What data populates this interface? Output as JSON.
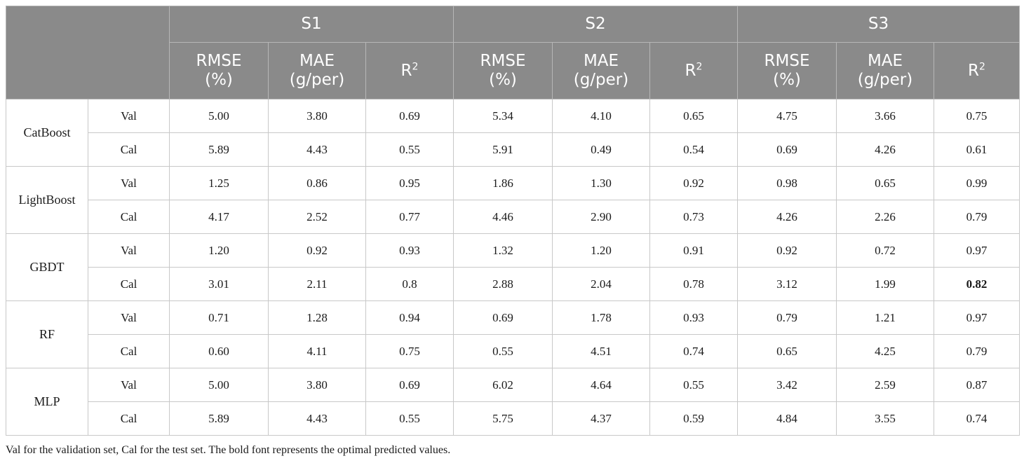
{
  "header": {
    "groups": [
      "S1",
      "S2",
      "S3"
    ],
    "metrics": [
      {
        "line1": "RMSE",
        "line2": "(%)"
      },
      {
        "line1": "MAE",
        "line2": "(g/per)"
      },
      {
        "line1": "R",
        "sup": "2"
      }
    ]
  },
  "rows": [
    {
      "model": "CatBoost",
      "sets": [
        {
          "label": "Val",
          "values": [
            "5.00",
            "3.80",
            "0.69",
            "5.34",
            "4.10",
            "0.65",
            "4.75",
            "3.66",
            "0.75"
          ]
        },
        {
          "label": "Cal",
          "values": [
            "5.89",
            "4.43",
            "0.55",
            "5.91",
            "0.49",
            "0.54",
            "0.69",
            "4.26",
            "0.61"
          ]
        }
      ]
    },
    {
      "model": "LightBoost",
      "sets": [
        {
          "label": "Val",
          "values": [
            "1.25",
            "0.86",
            "0.95",
            "1.86",
            "1.30",
            "0.92",
            "0.98",
            "0.65",
            "0.99"
          ]
        },
        {
          "label": "Cal",
          "values": [
            "4.17",
            "2.52",
            "0.77",
            "4.46",
            "2.90",
            "0.73",
            "4.26",
            "2.26",
            "0.79"
          ]
        }
      ]
    },
    {
      "model": "GBDT",
      "sets": [
        {
          "label": "Val",
          "values": [
            "1.20",
            "0.92",
            "0.93",
            "1.32",
            "1.20",
            "0.91",
            "0.92",
            "0.72",
            "0.97"
          ]
        },
        {
          "label": "Cal",
          "values": [
            "3.01",
            "2.11",
            "0.8",
            "2.88",
            "2.04",
            "0.78",
            "3.12",
            "1.99",
            "0.82"
          ],
          "bold": [
            8
          ]
        }
      ]
    },
    {
      "model": "RF",
      "sets": [
        {
          "label": "Val",
          "values": [
            "0.71",
            "1.28",
            "0.94",
            "0.69",
            "1.78",
            "0.93",
            "0.79",
            "1.21",
            "0.97"
          ]
        },
        {
          "label": "Cal",
          "values": [
            "0.60",
            "4.11",
            "0.75",
            "0.55",
            "4.51",
            "0.74",
            "0.65",
            "4.25",
            "0.79"
          ]
        }
      ]
    },
    {
      "model": "MLP",
      "sets": [
        {
          "label": "Val",
          "values": [
            "5.00",
            "3.80",
            "0.69",
            "6.02",
            "4.64",
            "0.55",
            "3.42",
            "2.59",
            "0.87"
          ]
        },
        {
          "label": "Cal",
          "values": [
            "5.89",
            "4.43",
            "0.55",
            "5.75",
            "4.37",
            "0.59",
            "4.84",
            "3.55",
            "0.74"
          ]
        }
      ]
    }
  ],
  "footnote": "Val for the validation set, Cal for the test set. The bold font represents the optimal predicted values."
}
